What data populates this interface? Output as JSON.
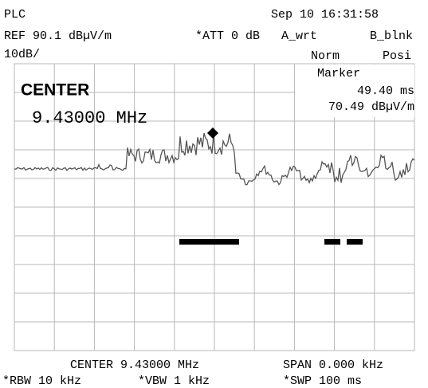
{
  "header": {
    "title": "PLC",
    "datetime": "Sep 10 16:31:58",
    "ref": "REF 90.1 dBµV/m",
    "att": "*ATT 0 dB",
    "trace_a": "A_wrt",
    "trace_b": "B_blnk",
    "scale": "10dB/",
    "detector_a": "Norm",
    "detector_b": "Posi"
  },
  "center_panel": {
    "label": "CENTER",
    "value": "9.43000 MHz"
  },
  "marker": {
    "label": "Marker",
    "time": "49.40 ms",
    "level": "70.49 dBµV/m"
  },
  "footer": {
    "center": "CENTER 9.43000 MHz",
    "span": "SPAN 0.000 kHz",
    "rbw": "*RBW 10 kHz",
    "vbw": "*VBW 1 kHz",
    "swp": "*SWP 100 ms"
  }
}
